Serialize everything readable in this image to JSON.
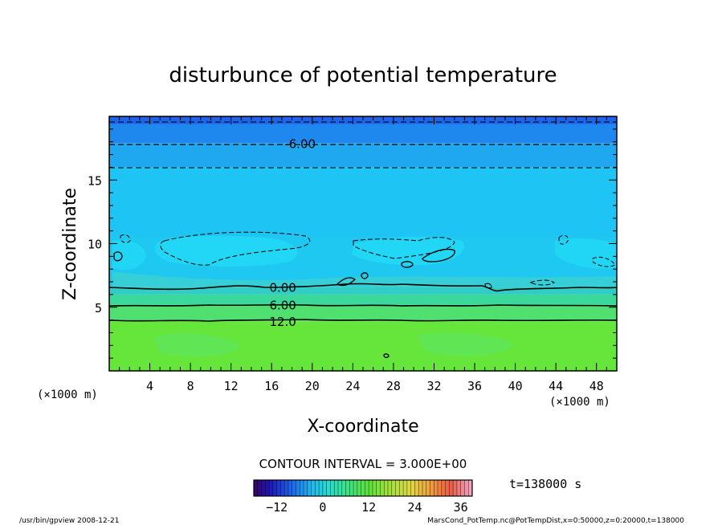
{
  "chart_data": {
    "type": "heatmap",
    "title": "disturbunce of potential temperature",
    "xlabel": "X-coordinate",
    "ylabel": "Z-coordinate",
    "x_unit": "(×1000 m)",
    "y_unit": "(×1000 m)",
    "xlim": [
      0,
      50
    ],
    "ylim": [
      0,
      20
    ],
    "x_ticks": [
      4,
      8,
      12,
      16,
      20,
      24,
      28,
      32,
      36,
      40,
      44,
      48
    ],
    "y_ticks": [
      5,
      10,
      15
    ],
    "contour_interval_text": "CONTOUR INTERVAL = 3.000E+00",
    "time_text": "t=138000 s",
    "colorbar": {
      "min": -18,
      "max": 39,
      "ticks": [
        -12,
        0,
        12,
        24,
        36
      ]
    },
    "contour_labels": [
      {
        "text": "-6.00",
        "x": 18.8,
        "z": 17.9
      },
      {
        "text": "0.00",
        "x": 17.1,
        "z": 6.6
      },
      {
        "text": "6.00",
        "x": 17.1,
        "z": 5.2
      },
      {
        "text": "12.0",
        "x": 17.1,
        "z": 3.9
      }
    ],
    "bands": [
      {
        "z0": 0.0,
        "z1": 3.9,
        "value": 14,
        "color": "#66e63a"
      },
      {
        "z0": 3.9,
        "z1": 5.2,
        "value": 10,
        "color": "#4fe070"
      },
      {
        "z0": 5.2,
        "z1": 6.0,
        "value": 7,
        "color": "#3ad89a"
      },
      {
        "z0": 6.0,
        "z1": 6.6,
        "value": 4,
        "color": "#30ccc6"
      },
      {
        "z0": 6.6,
        "z1": 10.6,
        "value": -2,
        "color": "#1ec8f0"
      },
      {
        "z0": 10.6,
        "z1": 16.0,
        "value": -4,
        "color": "#1ec4f4"
      },
      {
        "z0": 16.0,
        "z1": 17.9,
        "value": -6,
        "color": "#1fa8f0"
      },
      {
        "z0": 17.9,
        "z1": 19.4,
        "value": -9,
        "color": "#1f88ee"
      },
      {
        "z0": 19.4,
        "z1": 20.0,
        "value": -12,
        "color": "#1f63ea"
      }
    ]
  },
  "footer": {
    "left": "/usr/bin/gpview   2008-12-21",
    "right": "MarsCond_PotTemp.nc@PotTempDist,x=0:50000,z=0:20000,t=138000"
  }
}
